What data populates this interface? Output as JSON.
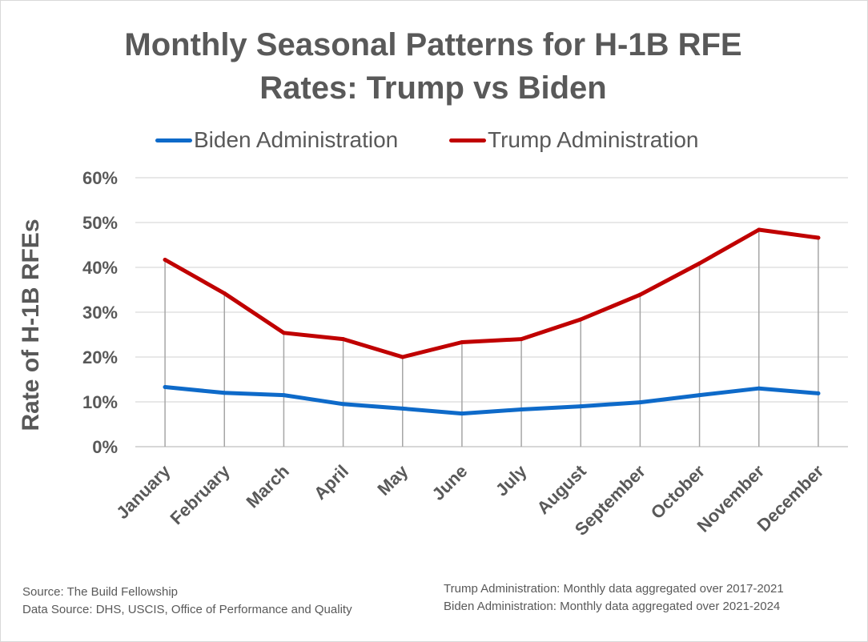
{
  "chart_data": {
    "type": "line",
    "title_line1": "Monthly Seasonal Patterns for H-1B RFE",
    "title_line2": "Rates: Trump vs Biden",
    "ylabel": "Rate of H-1B RFEs",
    "xlabel": "",
    "ylim": [
      0,
      60
    ],
    "y_ticks": [
      "0%",
      "10%",
      "20%",
      "30%",
      "40%",
      "50%",
      "60%"
    ],
    "categories": [
      "January",
      "February",
      "March",
      "April",
      "May",
      "June",
      "July",
      "August",
      "September",
      "October",
      "November",
      "December"
    ],
    "series": [
      {
        "name": "Biden Administration",
        "color": "#0e6ac9",
        "values": [
          13.3,
          12.0,
          11.5,
          9.5,
          8.5,
          7.4,
          8.3,
          9.0,
          9.9,
          11.5,
          13.0,
          11.9
        ]
      },
      {
        "name": "Trump Administration",
        "color": "#c00000",
        "values": [
          41.7,
          34.2,
          25.4,
          24.0,
          20.0,
          23.3,
          24.0,
          28.4,
          33.9,
          40.9,
          48.4,
          46.6
        ]
      }
    ],
    "legend_position": "top",
    "grid": true
  },
  "footer": {
    "source": "Source: The Build Fellowship",
    "data_source": "Data Source: DHS, USCIS, Office of Performance and Quality",
    "trump_note": "Trump Administration: Monthly data aggregated over 2017-2021",
    "biden_note": "Biden Administration: Monthly data  aggregated over 2021-2024"
  },
  "colors": {
    "text": "#595959",
    "gridline": "#d9d9d9",
    "drop_line": "#a6a6a6"
  }
}
